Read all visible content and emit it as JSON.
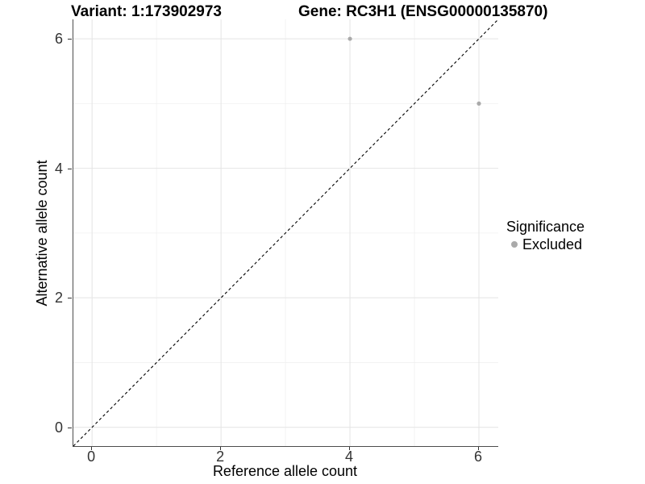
{
  "figure": {
    "title_left": "Variant: 1:173902973",
    "title_right": "Gene: RC3H1 (ENSG00000135870)"
  },
  "chart_data": {
    "type": "scatter",
    "title_left": "Variant: 1:173902973",
    "title_right": "Gene: RC3H1 (ENSG00000135870)",
    "xlabel": "Reference allele count",
    "ylabel": "Alternative allele count",
    "xlim": [
      -0.29,
      6.3
    ],
    "ylim": [
      -0.29,
      6.3
    ],
    "x_major_ticks": [
      0,
      2,
      4,
      6
    ],
    "y_major_ticks": [
      0,
      2,
      4,
      6
    ],
    "x_minor_ticks": [
      1,
      3,
      5
    ],
    "y_minor_ticks": [
      1,
      3,
      5
    ],
    "grid": true,
    "points": [
      {
        "x": 4,
        "y": 6,
        "series": "Excluded"
      },
      {
        "x": 6,
        "y": 5,
        "series": "Excluded"
      }
    ],
    "identity_line": {
      "slope": 1,
      "intercept": 0,
      "linetype": "dashed",
      "color": "#000000"
    },
    "legend": {
      "title": "Significance",
      "position": "right",
      "entries": [
        {
          "label": "Excluded",
          "color": "#aaaaaa"
        }
      ]
    },
    "colors": {
      "point": "#aaaaaa",
      "grid_major": "#e4e4e4",
      "grid_minor": "#f0f0f0",
      "axis_line": "#4d4d4d",
      "tick": "#333333"
    }
  }
}
